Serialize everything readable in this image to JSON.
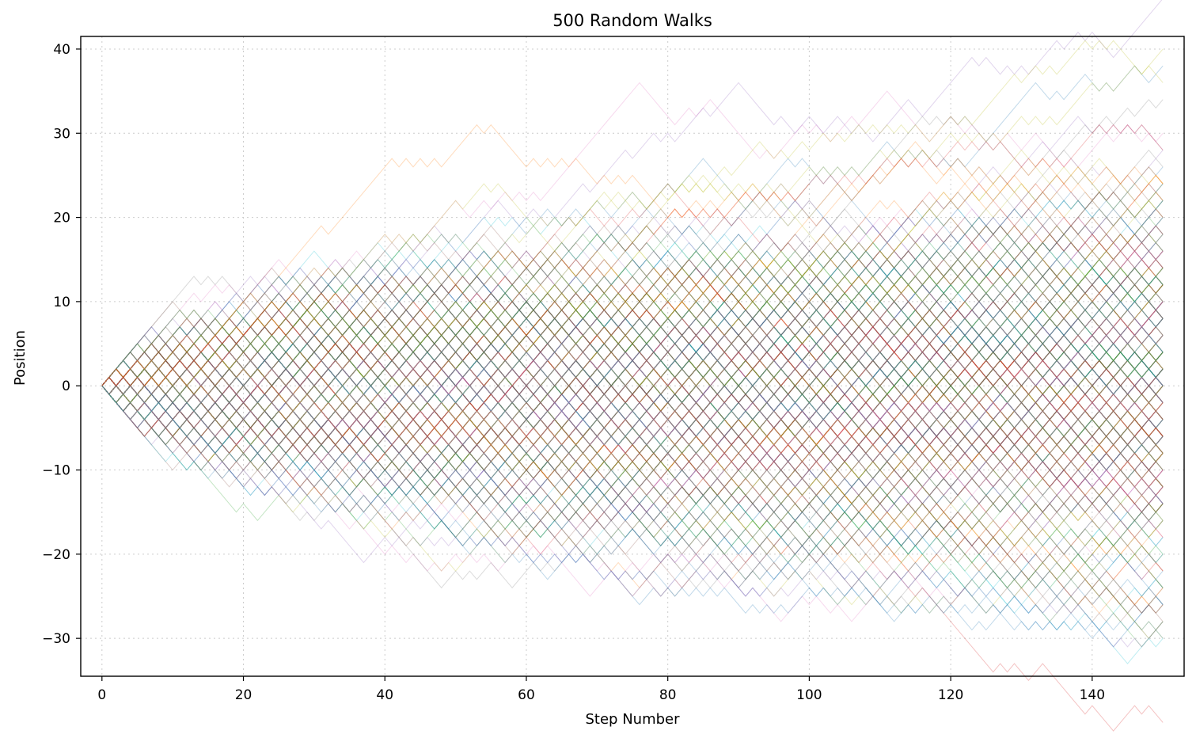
{
  "chart_data": {
    "type": "line",
    "title": "500 Random Walks",
    "xlabel": "Step Number",
    "ylabel": "Position",
    "xlim": [
      -3,
      153
    ],
    "ylim": [
      -34.5,
      41.5
    ],
    "xticks": [
      0,
      20,
      40,
      60,
      80,
      100,
      120,
      140
    ],
    "yticks": [
      -30,
      -20,
      -10,
      0,
      10,
      20,
      30,
      40
    ],
    "grid": true,
    "legend": "none",
    "n_walks": 500,
    "n_steps": 150,
    "start_position": 0,
    "step_size": 1,
    "series_colors": [
      "#1f77b4",
      "#ff7f0e",
      "#2ca02c",
      "#d62728",
      "#9467bd",
      "#8c564b",
      "#e377c2",
      "#7f7f7f",
      "#bcbd22",
      "#17becf"
    ],
    "series": [
      {
        "x": [
          0,
          10,
          20,
          30,
          40,
          50,
          53,
          60,
          70,
          80,
          90,
          100,
          110,
          120,
          130,
          140,
          146,
          150
        ],
        "y": [
          0,
          6,
          10,
          14,
          18,
          22,
          23,
          20,
          22,
          24,
          25,
          27,
          28,
          30,
          33,
          36,
          38,
          36
        ]
      },
      {
        "x": [
          0,
          10,
          20,
          30,
          40,
          45,
          53,
          60,
          65,
          70,
          80,
          90,
          100
        ],
        "y": [
          0,
          4,
          10,
          18,
          26,
          27,
          31,
          26,
          27,
          24,
          20,
          22,
          24
        ]
      },
      {
        "x": [
          0,
          10,
          20,
          30,
          37,
          40,
          50,
          60,
          70,
          80,
          90,
          100,
          110,
          120,
          130,
          143,
          150
        ],
        "y": [
          0,
          -6,
          -10,
          -16,
          -21,
          -18,
          -18,
          -20,
          -22,
          -20,
          -24,
          -22,
          -22,
          -24,
          -26,
          -31,
          -28
        ]
      },
      {
        "x": [
          0,
          12,
          20,
          30,
          40,
          50,
          60,
          70,
          80,
          90,
          100,
          110,
          120,
          130,
          140,
          150
        ],
        "y": [
          0,
          12,
          10,
          12,
          10,
          8,
          10,
          12,
          14,
          12,
          16,
          14,
          18,
          16,
          20,
          22
        ]
      },
      {
        "x": [
          0,
          10,
          20,
          30,
          40,
          50,
          60,
          70,
          80,
          90,
          100,
          110,
          120,
          130,
          140,
          150
        ],
        "y": [
          0,
          -4,
          -12,
          -14,
          -12,
          -18,
          -20,
          -22,
          -24,
          -26,
          -24,
          -26,
          -27,
          -29,
          -27,
          -30
        ]
      },
      {
        "x": [
          0,
          10,
          20,
          30,
          40,
          50,
          60,
          70,
          80,
          90,
          100,
          110,
          120,
          130,
          140,
          150
        ],
        "y": [
          0,
          2,
          6,
          4,
          8,
          12,
          14,
          16,
          20,
          22,
          24,
          26,
          28,
          26,
          30,
          28
        ]
      }
    ]
  }
}
